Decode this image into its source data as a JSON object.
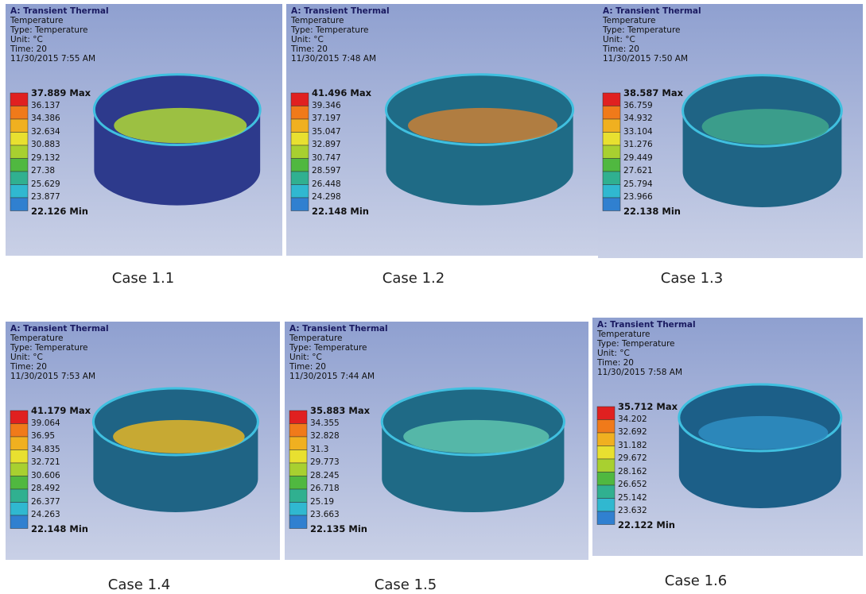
{
  "panels": [
    {
      "title": "A: Transient Thermal",
      "lines": [
        "Temperature",
        "Type: Temperature",
        "Unit: °C",
        "Time: 20",
        "11/30/2015 7:55 AM"
      ],
      "legend": [
        "37.889 Max",
        "36.137",
        "34.386",
        "32.634",
        "30.883",
        "29.132",
        "27.38",
        "25.629",
        "23.877",
        "22.126 Min"
      ],
      "caption": "Case 1.1"
    },
    {
      "title": "A: Transient Thermal",
      "lines": [
        "Temperature",
        "Type: Temperature",
        "Unit: °C",
        "Time: 20",
        "11/30/2015 7:48 AM"
      ],
      "legend": [
        "41.496 Max",
        "39.346",
        "37.197",
        "35.047",
        "32.897",
        "30.747",
        "28.597",
        "26.448",
        "24.298",
        "22.148 Min"
      ],
      "caption": "Case 1.2"
    },
    {
      "title": "A: Transient Thermal",
      "lines": [
        "Temperature",
        "Type: Temperature",
        "Unit: °C",
        "Time: 20",
        "11/30/2015 7:50 AM"
      ],
      "legend": [
        "38.587 Max",
        "36.759",
        "34.932",
        "33.104",
        "31.276",
        "29.449",
        "27.621",
        "25.794",
        "23.966",
        "22.138 Min"
      ],
      "caption": "Case 1.3"
    },
    {
      "title": "A: Transient Thermal",
      "lines": [
        "Temperature",
        "Type: Temperature",
        "Unit: °C",
        "Time: 20",
        "11/30/2015 7:53 AM"
      ],
      "legend": [
        "41.179 Max",
        "39.064",
        "36.95",
        "34.835",
        "32.721",
        "30.606",
        "28.492",
        "26.377",
        "24.263",
        "22.148 Min"
      ],
      "caption": "Case 1.4"
    },
    {
      "title": "A: Transient Thermal",
      "lines": [
        "Temperature",
        "Type: Temperature",
        "Unit: °C",
        "Time: 20",
        "11/30/2015 7:44 AM"
      ],
      "legend": [
        "35.883 Max",
        "34.355",
        "32.828",
        "31.3",
        "29.773",
        "28.245",
        "26.718",
        "25.19",
        "23.663",
        "22.135 Min"
      ],
      "caption": "Case 1.5"
    },
    {
      "title": "A: Transient Thermal",
      "lines": [
        "Temperature",
        "Type: Temperature",
        "Unit: °C",
        "Time: 20",
        "11/30/2015 7:58 AM"
      ],
      "legend": [
        "35.712 Max",
        "34.202",
        "32.692",
        "31.182",
        "29.672",
        "28.162",
        "26.652",
        "25.142",
        "23.632",
        "22.122 Min"
      ],
      "caption": "Case 1.6"
    }
  ]
}
